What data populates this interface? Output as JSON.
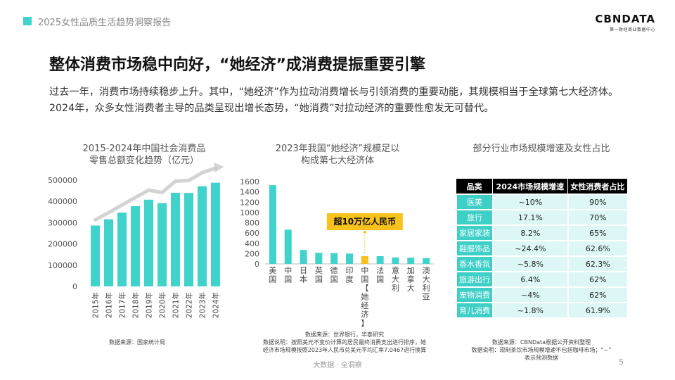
{
  "header": {
    "title": "2025女性品质生活趋势洞察报告",
    "accent": "#3fd3cc"
  },
  "logo": {
    "name": "CBNDATA",
    "tagline": "第一财经商业数据中心"
  },
  "headline": "整体消费市场稳中向好，“她经济”成消费提振重要引擎",
  "intro": "过去一年，消费市场持续稳步上升。其中，“她经济”作为拉动消费增长与引领消费的重要动能，其规模相当于全球第七大经济体。2024年，众多女性消费者主导的品类呈现出增长态势，“她消费”对拉动经济的重要性愈发无可替代。",
  "panel1": {
    "title_line1": "2015-2024年中国社会消费品",
    "title_line2": "零售总额变化趋势（亿元）",
    "source": "数据来源：国家统计局"
  },
  "panel2": {
    "title_line1": "2023年我国“她经济”规模足以",
    "title_line2": "构成第七大经济体",
    "callout": "超10万亿人民币",
    "source_line1": "数据来源：世界银行，华泰研究",
    "source_line2": "数据说明：按照美元不变价计算的居民最终消费支出进行排序，她",
    "source_line3": "经济市场规模按照2023年人民币兑美元平均汇率7.0467进行换算"
  },
  "panel3": {
    "title": "部分行业市场规模增速及女性占比",
    "columns": [
      "品类",
      "2024市场规模增速",
      "女性消费者占比"
    ],
    "rows": [
      [
        "医美",
        "~10%",
        "90%"
      ],
      [
        "旅行",
        "17.1%",
        "70%"
      ],
      [
        "家居家装",
        "8.2%",
        "65%"
      ],
      [
        "鞋服饰品",
        "~24.4%",
        "62.6%"
      ],
      [
        "香水香氛",
        "~5.8%",
        "62.3%"
      ],
      [
        "旅游出行",
        "6.4%",
        "62%"
      ],
      [
        "宠物消费",
        "~4%",
        "62%"
      ],
      [
        "育儿消费",
        "~1.8%",
        "61.9%"
      ]
    ],
    "source_line1": "数据来源：CBNData根据公开资料整理",
    "source_line2": "数据说明：现制茶饮市场规模增速不包括咖啡市场；“~”",
    "source_line3": "表示预测数据"
  },
  "footer": "大数据 · 全洞察",
  "page_number": "5",
  "chart_data": [
    {
      "type": "bar",
      "categories": [
        "2015年",
        "2016年",
        "2017年",
        "2018年",
        "2019年",
        "2020年",
        "2021年",
        "2022年",
        "2023年",
        "2024年"
      ],
      "values": [
        286588,
        315806,
        347327,
        377783,
        408017,
        391981,
        440823,
        439733,
        471495,
        487895
      ],
      "ylim": [
        0,
        500000
      ],
      "yticks": [
        0,
        100000,
        200000,
        300000,
        400000,
        500000
      ],
      "grid": false,
      "trend_line": true,
      "color": "#3fd3cc",
      "trend_color": "#c8c8c8"
    },
    {
      "type": "bar",
      "categories": [
        "美国",
        "中国",
        "日本",
        "英国",
        "德国",
        "印度",
        "中国【她经济】",
        "法国",
        "意大利",
        "加拿大",
        "澳大利亚"
      ],
      "values": [
        1530,
        665,
        270,
        215,
        210,
        200,
        150,
        150,
        125,
        120,
        110
      ],
      "highlight_index": 6,
      "ylim": [
        0,
        1600
      ],
      "yticks": [
        0,
        200,
        400,
        600,
        800,
        1000,
        1200,
        1400,
        1600
      ],
      "grid": false,
      "color": "#3fd3cc",
      "highlight_color": "#f7c21b"
    }
  ]
}
